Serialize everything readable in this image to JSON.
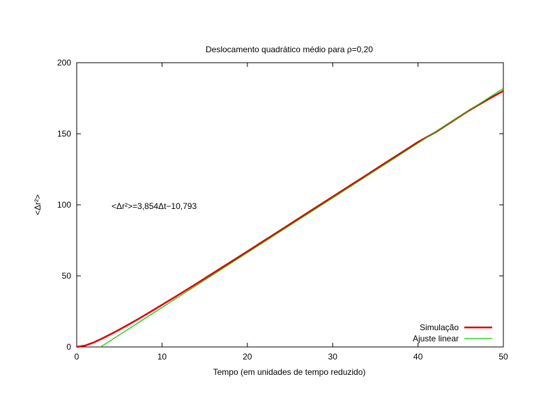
{
  "chart_data": {
    "type": "line",
    "title": "Deslocamento quadrático médio para ρ=0,20",
    "xlabel": "Tempo (em unidades de tempo reduzido)",
    "ylabel": "<Δr²>",
    "xlim": [
      0,
      50
    ],
    "ylim": [
      0,
      200
    ],
    "x_ticks": [
      0,
      10,
      20,
      30,
      40,
      50
    ],
    "y_ticks": [
      0,
      50,
      100,
      150,
      200
    ],
    "grid": false,
    "legend_position": "bottom-right",
    "annotation": "<Δr²>=3,854Δt−10,793",
    "series": [
      {
        "name": "Simulação",
        "color": "#e00000",
        "x": [
          0,
          1,
          2,
          3,
          4,
          5,
          6,
          7,
          8,
          9,
          10,
          12,
          14,
          16,
          18,
          20,
          22,
          24,
          26,
          28,
          30,
          32,
          34,
          36,
          38,
          40,
          42,
          44,
          46,
          48,
          50
        ],
        "y": [
          0,
          1.0,
          3.2,
          6.0,
          9.0,
          12.2,
          15.5,
          18.9,
          22.4,
          26.0,
          29.6,
          36.9,
          44.4,
          52.0,
          59.6,
          67.2,
          74.9,
          82.6,
          90.3,
          98.0,
          105.7,
          113.4,
          121.1,
          128.8,
          136.5,
          144.2,
          150.9,
          158.7,
          166.4,
          173.5,
          180.2
        ]
      },
      {
        "name": "Ajuste linear",
        "color": "#00cc00",
        "x": [
          2.8,
          50
        ],
        "y": [
          0,
          181.9
        ]
      }
    ]
  }
}
